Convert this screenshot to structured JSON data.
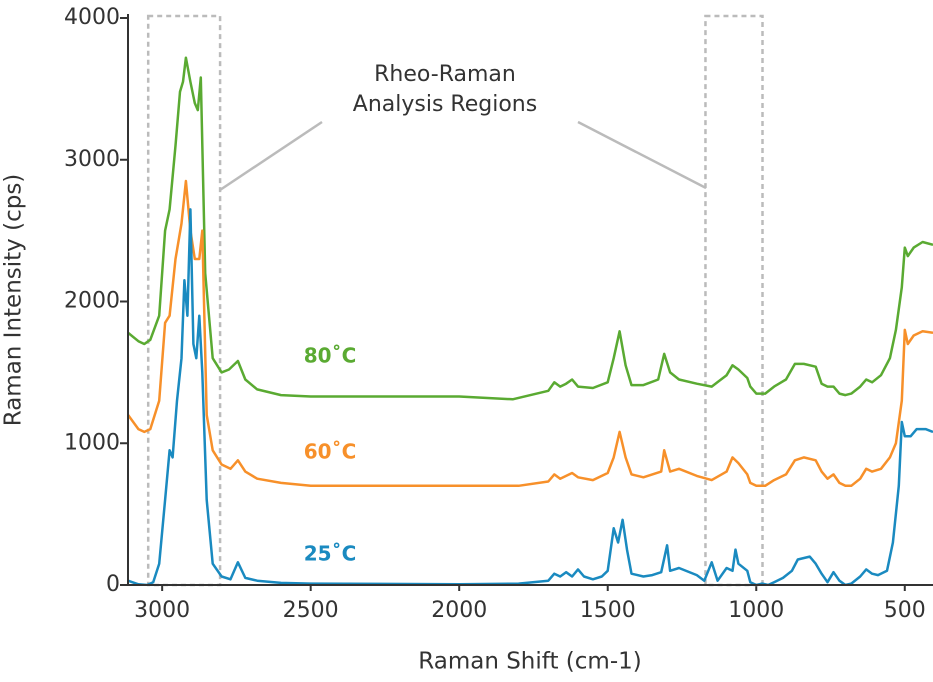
{
  "chart_data": {
    "type": "line",
    "xlabel": "Raman Shift (cm-1)",
    "ylabel": "Raman Intensity (cps)",
    "annotation": [
      "Rheo-Raman",
      "Analysis Regions"
    ],
    "regions": [
      [
        3047,
        2805
      ],
      [
        1171,
        979
      ]
    ],
    "xlim": [
      3115,
      405
    ],
    "xticks": [
      3000,
      2500,
      2000,
      1500,
      1000,
      500
    ],
    "ylim": [
      0,
      4000
    ],
    "yticks": [
      0,
      1000,
      2000,
      3000,
      4000
    ],
    "series": [
      {
        "name": "80˚C",
        "color": "#5aaa32",
        "x": [
          3115,
          3080,
          3060,
          3040,
          3010,
          2990,
          2975,
          2955,
          2940,
          2930,
          2920,
          2905,
          2890,
          2880,
          2870,
          2855,
          2830,
          2800,
          2775,
          2745,
          2720,
          2680,
          2600,
          2500,
          2000,
          1820,
          1700,
          1680,
          1660,
          1640,
          1620,
          1600,
          1550,
          1500,
          1480,
          1460,
          1440,
          1420,
          1380,
          1330,
          1310,
          1290,
          1260,
          1200,
          1150,
          1100,
          1080,
          1060,
          1030,
          1020,
          1000,
          970,
          940,
          900,
          870,
          840,
          800,
          780,
          760,
          740,
          720,
          700,
          680,
          650,
          630,
          610,
          580,
          550,
          530,
          510,
          500,
          490,
          470,
          440,
          405
        ],
        "values": [
          1780,
          1720,
          1700,
          1730,
          1900,
          2500,
          2650,
          3100,
          3480,
          3550,
          3720,
          3550,
          3400,
          3350,
          3580,
          2200,
          1600,
          1500,
          1520,
          1580,
          1450,
          1380,
          1340,
          1330,
          1330,
          1310,
          1370,
          1430,
          1400,
          1420,
          1450,
          1400,
          1390,
          1430,
          1600,
          1790,
          1550,
          1410,
          1410,
          1450,
          1630,
          1500,
          1450,
          1420,
          1400,
          1480,
          1550,
          1520,
          1460,
          1400,
          1350,
          1350,
          1400,
          1450,
          1560,
          1560,
          1540,
          1420,
          1400,
          1400,
          1350,
          1340,
          1350,
          1400,
          1450,
          1430,
          1480,
          1600,
          1800,
          2100,
          2380,
          2320,
          2380,
          2420,
          2400
        ]
      },
      {
        "name": "60˚C",
        "color": "#f7902a",
        "x": [
          3115,
          3080,
          3060,
          3040,
          3010,
          2990,
          2975,
          2955,
          2935,
          2920,
          2905,
          2890,
          2875,
          2865,
          2850,
          2830,
          2800,
          2770,
          2745,
          2720,
          2680,
          2600,
          2500,
          2000,
          1800,
          1700,
          1680,
          1660,
          1640,
          1620,
          1600,
          1550,
          1500,
          1480,
          1460,
          1440,
          1420,
          1380,
          1320,
          1310,
          1290,
          1260,
          1200,
          1150,
          1100,
          1080,
          1060,
          1030,
          1020,
          1000,
          970,
          940,
          900,
          870,
          840,
          800,
          780,
          760,
          740,
          720,
          700,
          680,
          650,
          630,
          610,
          580,
          550,
          530,
          510,
          500,
          490,
          470,
          440,
          405
        ],
        "values": [
          1200,
          1100,
          1080,
          1100,
          1300,
          1850,
          1900,
          2300,
          2550,
          2850,
          2500,
          2300,
          2300,
          2500,
          1200,
          950,
          850,
          820,
          880,
          800,
          750,
          720,
          700,
          700,
          700,
          730,
          780,
          750,
          770,
          790,
          760,
          740,
          790,
          900,
          1080,
          900,
          780,
          760,
          800,
          950,
          800,
          820,
          770,
          740,
          800,
          900,
          860,
          780,
          720,
          700,
          700,
          740,
          780,
          880,
          900,
          880,
          800,
          750,
          780,
          720,
          700,
          700,
          750,
          820,
          800,
          820,
          900,
          1000,
          1300,
          1800,
          1700,
          1760,
          1790,
          1780
        ]
      },
      {
        "name": "25˚C",
        "color": "#1a8ac0",
        "x": [
          3115,
          3080,
          3050,
          3030,
          3010,
          2990,
          2975,
          2965,
          2950,
          2935,
          2925,
          2915,
          2905,
          2895,
          2885,
          2875,
          2865,
          2850,
          2830,
          2800,
          2770,
          2745,
          2720,
          2680,
          2600,
          2500,
          2000,
          1800,
          1700,
          1680,
          1660,
          1640,
          1620,
          1600,
          1580,
          1550,
          1520,
          1500,
          1480,
          1465,
          1450,
          1435,
          1420,
          1380,
          1350,
          1320,
          1300,
          1290,
          1260,
          1200,
          1175,
          1150,
          1130,
          1100,
          1080,
          1070,
          1060,
          1030,
          1020,
          1000,
          980,
          960,
          940,
          910,
          880,
          860,
          820,
          800,
          780,
          760,
          740,
          720,
          700,
          680,
          650,
          630,
          610,
          590,
          560,
          540,
          520,
          510,
          500,
          480,
          460,
          430,
          405
        ],
        "values": [
          30,
          5,
          0,
          20,
          150,
          600,
          950,
          900,
          1300,
          1600,
          2150,
          1900,
          2650,
          1700,
          1600,
          1900,
          1500,
          600,
          150,
          60,
          40,
          160,
          50,
          30,
          15,
          10,
          5,
          10,
          30,
          80,
          60,
          90,
          60,
          110,
          60,
          40,
          60,
          100,
          400,
          300,
          460,
          250,
          80,
          60,
          70,
          90,
          280,
          100,
          120,
          70,
          30,
          160,
          30,
          120,
          100,
          250,
          150,
          100,
          20,
          0,
          10,
          0,
          20,
          50,
          100,
          180,
          200,
          150,
          80,
          20,
          90,
          30,
          0,
          10,
          60,
          110,
          80,
          70,
          100,
          300,
          700,
          1150,
          1050,
          1050,
          1100,
          1100,
          1080
        ]
      }
    ]
  }
}
